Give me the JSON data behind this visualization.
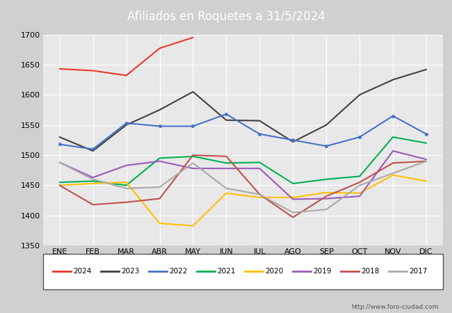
{
  "title": "Afiliados en Roquetes a 31/5/2024",
  "title_bg_color": "#4472c4",
  "ylim": [
    1350,
    1700
  ],
  "yticks": [
    1350,
    1400,
    1450,
    1500,
    1550,
    1600,
    1650,
    1700
  ],
  "months": [
    "ENE",
    "FEB",
    "MAR",
    "ABR",
    "MAY",
    "JUN",
    "JUL",
    "AGO",
    "SEP",
    "OCT",
    "NOV",
    "DIC"
  ],
  "series": {
    "2024": {
      "color": "#e8392a",
      "data": [
        1643,
        1640,
        1632,
        1677,
        1695,
        null,
        null,
        null,
        null,
        null,
        null,
        null
      ]
    },
    "2023": {
      "color": "#404040",
      "data": [
        1530,
        1507,
        1550,
        1575,
        1605,
        1558,
        1557,
        1522,
        1550,
        1600,
        1625,
        1642
      ]
    },
    "2022": {
      "color": "#4472c4",
      "data": [
        1518,
        1510,
        1553,
        1548,
        1548,
        1568,
        1535,
        1525,
        1515,
        1530,
        1565,
        1535
      ],
      "marker": "o"
    },
    "2021": {
      "color": "#00b050",
      "data": [
        1455,
        1457,
        1450,
        1495,
        1498,
        1487,
        1488,
        1453,
        1460,
        1465,
        1530,
        1520
      ]
    },
    "2020": {
      "color": "#ffc000",
      "data": [
        1450,
        1453,
        1455,
        1387,
        1383,
        1437,
        1430,
        1430,
        1438,
        1437,
        1467,
        1457
      ]
    },
    "2019": {
      "color": "#9b59b6",
      "data": [
        1488,
        1463,
        1483,
        1490,
        1478,
        1478,
        1478,
        1427,
        1428,
        1432,
        1507,
        1493
      ]
    },
    "2018": {
      "color": "#c0504d",
      "data": [
        1450,
        1418,
        1422,
        1428,
        1500,
        1498,
        1435,
        1397,
        1432,
        1455,
        1487,
        1490
      ]
    },
    "2017": {
      "color": "#aaaaaa",
      "data": [
        1488,
        1460,
        1445,
        1447,
        1487,
        1445,
        1435,
        1405,
        1410,
        1450,
        1470,
        1490
      ]
    }
  },
  "legend_order": [
    "2024",
    "2023",
    "2022",
    "2021",
    "2020",
    "2019",
    "2018",
    "2017"
  ],
  "watermark": "http://www.foro-ciudad.com",
  "outer_bg_color": "#d0d0d0",
  "plot_bg_color": "#e8e8e8",
  "grid_color": "#ffffff"
}
